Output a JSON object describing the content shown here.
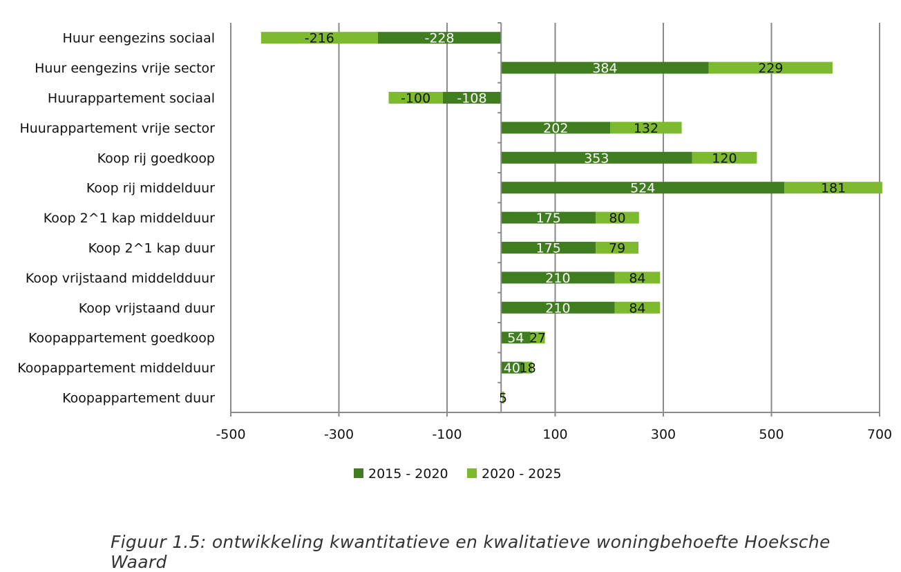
{
  "chart_data": {
    "type": "bar",
    "orientation": "horizontal",
    "stacked": true,
    "categories": [
      "Huur eengezins sociaal",
      "Huur eengezins vrije sector",
      "Huurappartement sociaal",
      "Huurappartement vrije sector",
      "Koop rij goedkoop",
      "Koop rij middelduur",
      "Koop 2^1 kap middelduur",
      "Koop 2^1 kap duur",
      "Koop vrijstaand middeldduur",
      "Koop vrijstaand duur",
      "Koopappartement goedkoop",
      "Koopappartement middelduur",
      "Koopappartement duur"
    ],
    "series": [
      {
        "name": "2015 - 2020",
        "color": "#3f7d20",
        "label_color": "#ffffff",
        "values": [
          -228,
          384,
          -108,
          202,
          353,
          524,
          175,
          175,
          210,
          210,
          54,
          40,
          1
        ]
      },
      {
        "name": "2020 - 2025",
        "color": "#7dba2f",
        "label_color": "#111111",
        "values": [
          -216,
          229,
          -100,
          132,
          120,
          181,
          80,
          79,
          84,
          84,
          27,
          18,
          5
        ]
      }
    ],
    "xlim": [
      -500,
      700
    ],
    "xticks": [
      -500,
      -300,
      -100,
      100,
      300,
      500,
      700
    ],
    "xtick_labels": [
      "-500",
      "-300",
      "-100",
      "100",
      "300",
      "500",
      "700"
    ],
    "grid": "vertical",
    "legend_position": "bottom",
    "title": "",
    "xlabel": "",
    "ylabel": ""
  },
  "caption": "Figuur 1.5: ontwikkeling kwantitatieve en kwalitatieve woningbehoefte Hoeksche Waard"
}
